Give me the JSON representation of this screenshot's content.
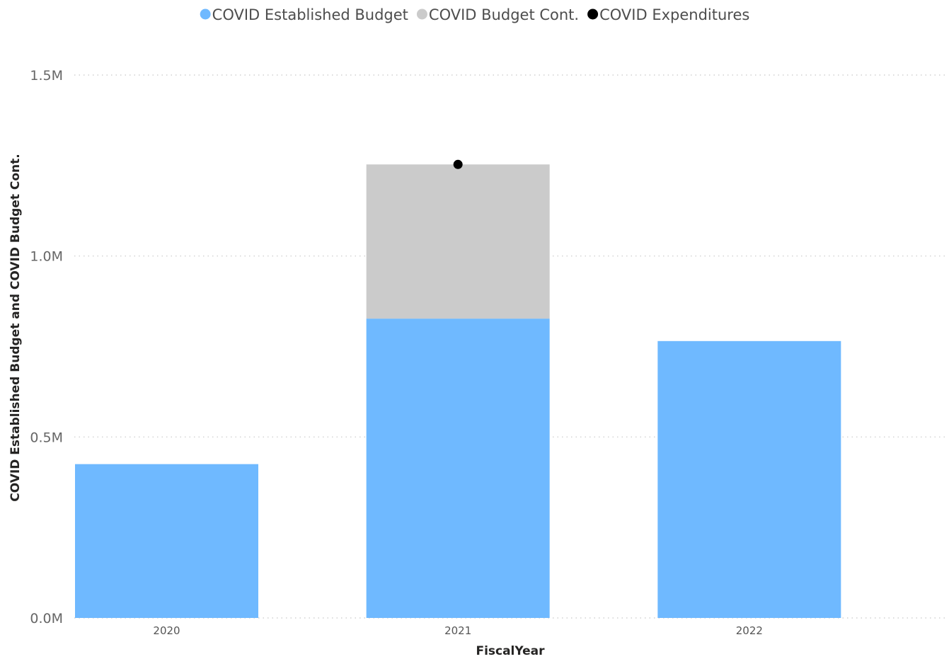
{
  "chart_data": {
    "type": "bar",
    "stacked": true,
    "categories": [
      "2020",
      "2021",
      "2022"
    ],
    "series": [
      {
        "name": "COVID Established Budget",
        "color": "#6fb9ff",
        "kind": "bar",
        "values": [
          425000,
          827000,
          765000
        ]
      },
      {
        "name": "COVID Budget Cont.",
        "color": "#cbcbcb",
        "kind": "bar",
        "values": [
          0,
          426000,
          0
        ]
      },
      {
        "name": "COVID Expenditures",
        "color": "#000000",
        "kind": "scatter",
        "values": [
          null,
          1253000,
          null
        ]
      }
    ],
    "xlabel": "FiscalYear",
    "ylabel": "COVID Established Budget and COVID Budget Cont.",
    "ylim": [
      0,
      1500000
    ],
    "yticks": [
      {
        "value": 0,
        "label": "0.0M"
      },
      {
        "value": 500000,
        "label": "0.5M"
      },
      {
        "value": 1000000,
        "label": "1.0M"
      },
      {
        "value": 1500000,
        "label": "1.5M"
      }
    ],
    "grid": true,
    "legend_position": "top-center"
  }
}
